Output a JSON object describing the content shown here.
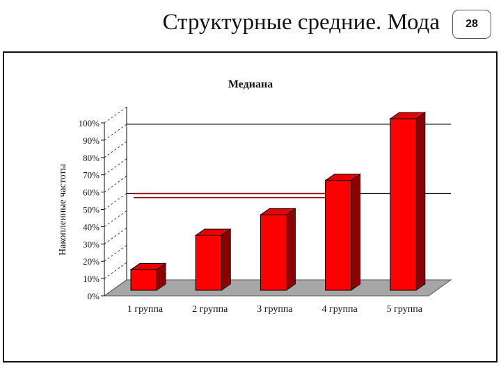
{
  "slide": {
    "title": "Структурные средние. Мода",
    "page_number": "28"
  },
  "chart_data": {
    "type": "bar",
    "title": "Медиана",
    "xlabel": "",
    "ylabel": "Накопленные частоты",
    "categories": [
      "1 группа",
      "2 группа",
      "3 группа",
      "4 группа",
      "5 группа"
    ],
    "values": [
      12,
      32,
      44,
      64,
      100
    ],
    "ylim": [
      0,
      100
    ],
    "yticks": [
      "0%",
      "10%",
      "20%",
      "30%",
      "40%",
      "50%",
      "60%",
      "70%",
      "80%",
      "90%",
      "100%"
    ],
    "reference_lines": [
      50,
      90
    ],
    "median_line": 58,
    "grid": false,
    "three_d": true,
    "colors": {
      "bar_front": "#ff0000",
      "bar_top": "#e60000",
      "bar_side": "#8c0000",
      "floor": "#a6a6a6",
      "median_line": "#9a0000"
    }
  }
}
